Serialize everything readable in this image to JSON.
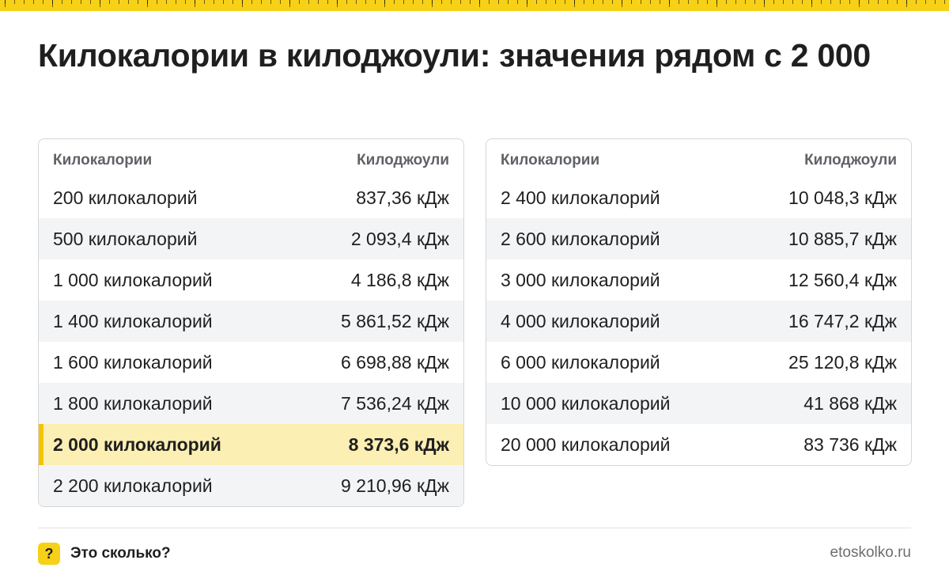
{
  "page": {
    "title": "Килокалории в килоджоули: значения рядом с 2 000"
  },
  "colors": {
    "accent": "#f7d117",
    "highlight_row": "#fcefb4",
    "alt_row": "#f3f4f6",
    "border": "#d6d6d6"
  },
  "tables": {
    "left": {
      "headers": [
        "Килокалории",
        "Килоджоули"
      ],
      "rows": [
        [
          "200 килокалорий",
          "837,36 кДж"
        ],
        [
          "500 килокалорий",
          "2 093,4 кДж"
        ],
        [
          "1 000 килокалорий",
          "4 186,8 кДж"
        ],
        [
          "1 400 килокалорий",
          "5 861,52 кДж"
        ],
        [
          "1 600 килокалорий",
          "6 698,88 кДж"
        ],
        [
          "1 800 килокалорий",
          "7 536,24 кДж"
        ],
        [
          "2 000 килокалорий",
          "8 373,6 кДж"
        ],
        [
          "2 200 килокалорий",
          "9 210,96 кДж"
        ]
      ]
    },
    "right": {
      "headers": [
        "Килокалории",
        "Килоджоули"
      ],
      "rows": [
        [
          "2 400 килокалорий",
          "10 048,3 кДж"
        ],
        [
          "2 600 килокалорий",
          "10 885,7 кДж"
        ],
        [
          "3 000 килокалорий",
          "12 560,4 кДж"
        ],
        [
          "4 000 килокалорий",
          "16 747,2 кДж"
        ],
        [
          "6 000 килокалорий",
          "25 120,8 кДж"
        ],
        [
          "10 000 килокалорий",
          "41 868 кДж"
        ],
        [
          "20 000 килокалорий",
          "83 736 кДж"
        ]
      ]
    }
  },
  "footer": {
    "logo_icon": "question-mark-icon",
    "logo_glyph": "?",
    "brand": "Это сколько?",
    "site": "etoskolko.ru"
  }
}
